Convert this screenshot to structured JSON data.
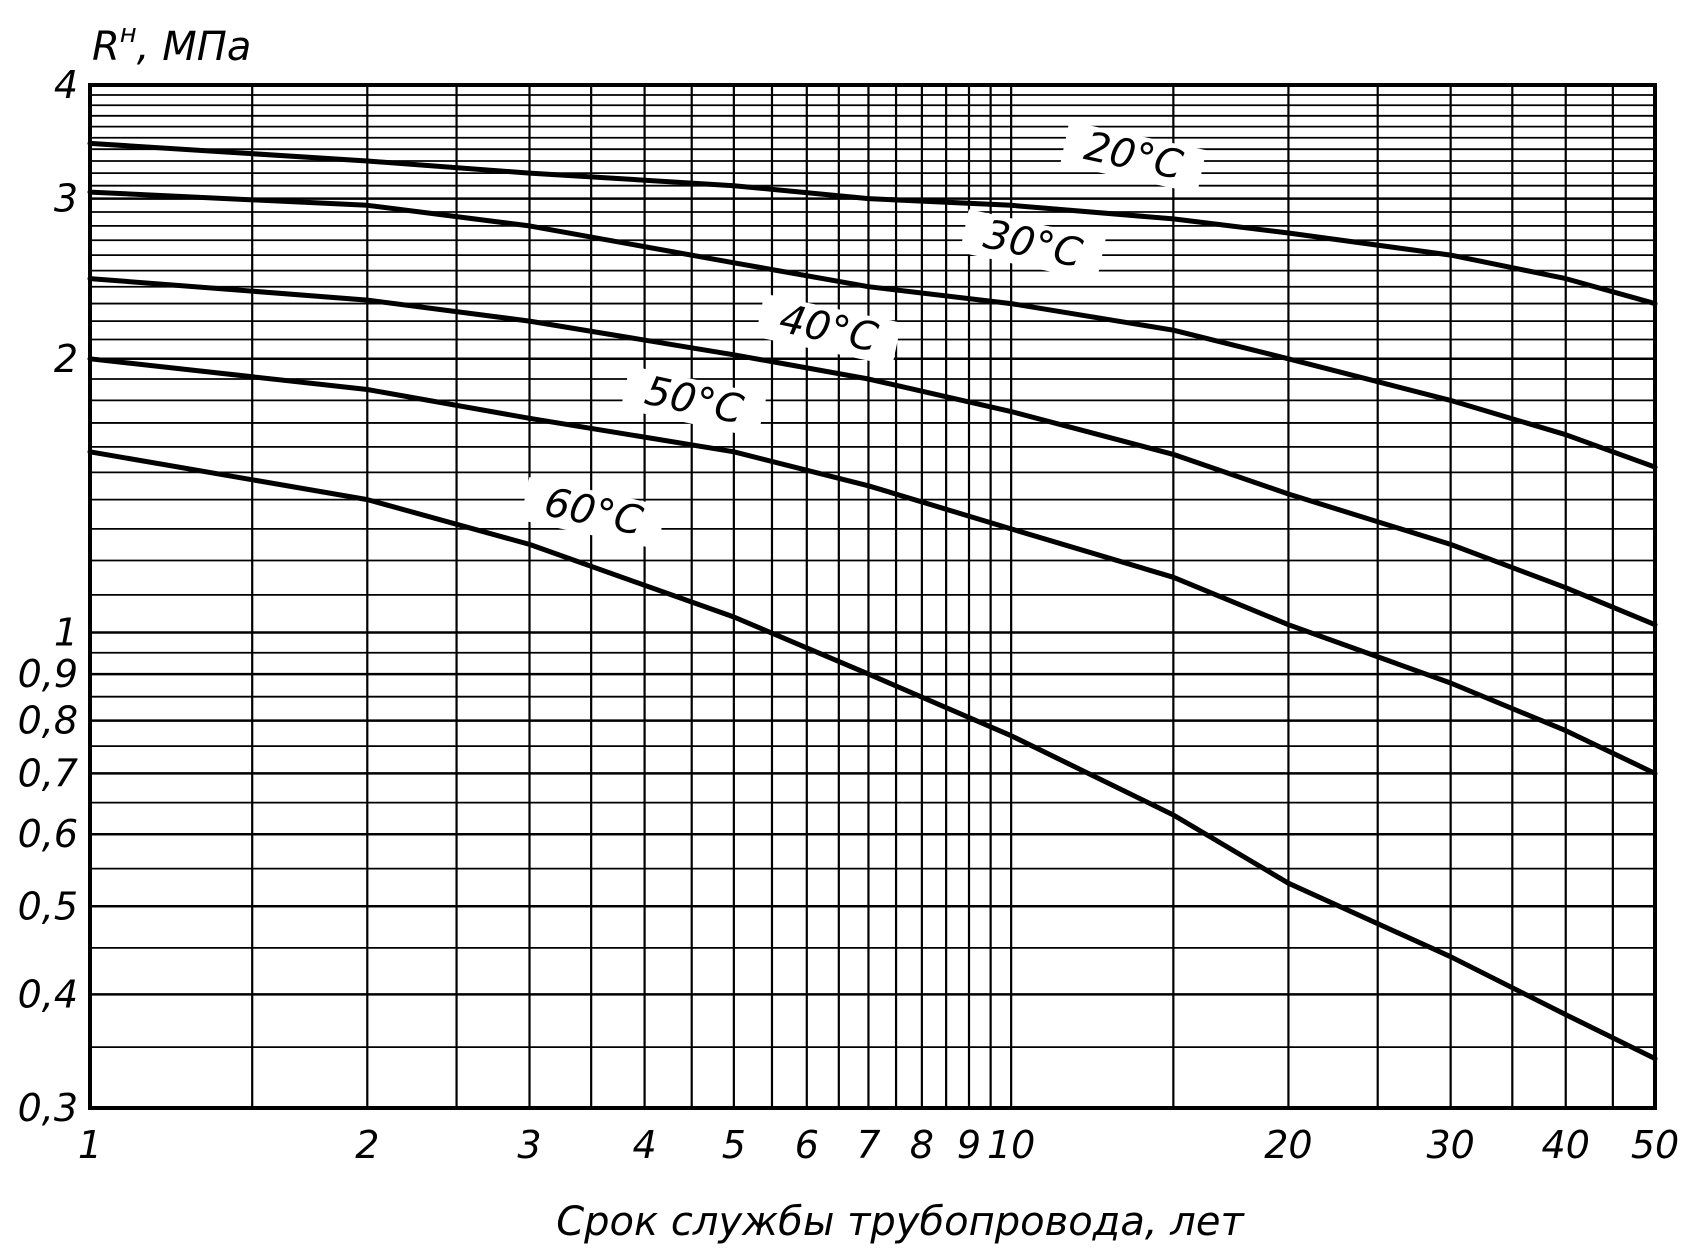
{
  "chart_data": {
    "type": "line",
    "title": "",
    "ylabel": "Rн, МПа",
    "ylabel_main": "R",
    "ylabel_sup": "н",
    "ylabel_unit": ", МПа",
    "xlabel": "Срок службы трубопровода, лет",
    "x_scale": "log",
    "y_scale": "log",
    "xlim": [
      1,
      50
    ],
    "ylim": [
      0.3,
      4
    ],
    "grid": true,
    "x_ticks": [
      1,
      2,
      3,
      4,
      5,
      6,
      7,
      8,
      9,
      10,
      20,
      30,
      40,
      50
    ],
    "x_tick_labels": [
      "1",
      "2",
      "3",
      "4",
      "5",
      "6",
      "7",
      "8",
      "9",
      "10",
      "20",
      "30",
      "40",
      "50"
    ],
    "y_ticks": [
      0.3,
      0.4,
      0.5,
      0.6,
      0.7,
      0.8,
      0.9,
      1,
      2,
      3,
      4
    ],
    "y_tick_labels": [
      "0,3",
      "0,4",
      "0,5",
      "0,6",
      "0,7",
      "0,8",
      "0,9",
      "1",
      "2",
      "3",
      "4"
    ],
    "series": [
      {
        "name": "20°C",
        "x": [
          1,
          2,
          3,
          5,
          7,
          10,
          15,
          20,
          30,
          40,
          50
        ],
        "y": [
          3.45,
          3.3,
          3.2,
          3.1,
          3.0,
          2.95,
          2.85,
          2.75,
          2.6,
          2.45,
          2.3
        ],
        "label_x": 13.5,
        "label_y": 3.25
      },
      {
        "name": "30°C",
        "x": [
          1,
          2,
          3,
          5,
          7,
          10,
          15,
          20,
          30,
          40,
          50
        ],
        "y": [
          3.05,
          2.95,
          2.8,
          2.55,
          2.4,
          2.3,
          2.15,
          2.0,
          1.8,
          1.65,
          1.52
        ],
        "label_x": 10.5,
        "label_y": 2.6
      },
      {
        "name": "40°C",
        "x": [
          1,
          2,
          3,
          5,
          7,
          10,
          15,
          20,
          30,
          40,
          50
        ],
        "y": [
          2.45,
          2.32,
          2.2,
          2.02,
          1.9,
          1.75,
          1.57,
          1.42,
          1.25,
          1.12,
          1.02
        ],
        "label_x": 6.3,
        "label_y": 2.1
      },
      {
        "name": "50°C",
        "x": [
          1,
          2,
          3,
          5,
          7,
          10,
          15,
          20,
          30,
          40,
          50
        ],
        "y": [
          2.0,
          1.85,
          1.72,
          1.58,
          1.45,
          1.3,
          1.15,
          1.02,
          0.88,
          0.78,
          0.7
        ],
        "label_x": 4.5,
        "label_y": 1.75
      },
      {
        "name": "60°C",
        "x": [
          1,
          2,
          3,
          5,
          7,
          10,
          15,
          20,
          30,
          40,
          50
        ],
        "y": [
          1.58,
          1.4,
          1.25,
          1.04,
          0.9,
          0.77,
          0.63,
          0.53,
          0.44,
          0.38,
          0.34
        ],
        "label_x": 3.5,
        "label_y": 1.32
      }
    ]
  }
}
